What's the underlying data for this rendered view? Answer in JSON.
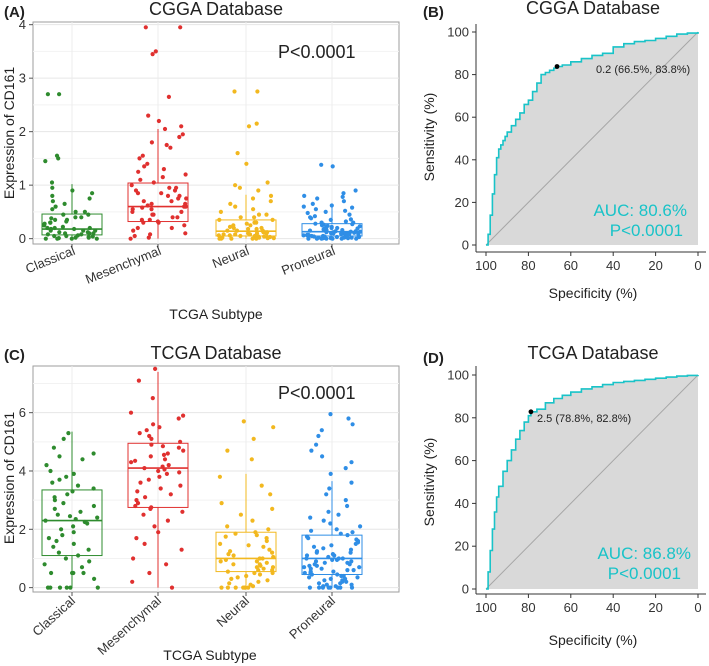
{
  "panels": [
    {
      "id": "A",
      "label": "(A)",
      "chart_data": {
        "type": "box",
        "title": "CGGA Database",
        "xlabel": "TCGA Subtype",
        "ylabel": "Expression of CD161",
        "annotation": "P<0.0001",
        "ylim": [
          -0.1,
          4.05
        ],
        "yticks": [
          0,
          1,
          2,
          3,
          4
        ],
        "categories": [
          "Classical",
          "Mesenchymal",
          "Neural",
          "Proneural"
        ],
        "colors": [
          "#2e8b2e",
          "#e0302f",
          "#f2b81f",
          "#2f8ee6"
        ],
        "boxes": [
          {
            "q1": 0.07,
            "median": 0.18,
            "q3": 0.46,
            "whisker_low": 0.0,
            "whisker_high": 1.02
          },
          {
            "q1": 0.32,
            "median": 0.6,
            "q3": 1.04,
            "whisker_low": 0.0,
            "whisker_high": 2.05
          },
          {
            "q1": 0.05,
            "median": 0.14,
            "q3": 0.35,
            "whisker_low": 0.0,
            "whisker_high": 0.82
          },
          {
            "q1": 0.05,
            "median": 0.13,
            "q3": 0.28,
            "whisker_low": 0.0,
            "whisker_high": 0.62
          }
        ],
        "points": [
          [
            2.7,
            2.7,
            1.55,
            1.5,
            1.45,
            1.05,
            0.95,
            0.9,
            0.85,
            0.8,
            0.75,
            0.7,
            0.65,
            0.6,
            0.55,
            0.5,
            0.5,
            0.45,
            0.45,
            0.4,
            0.4,
            0.38,
            0.35,
            0.35,
            0.32,
            0.3,
            0.3,
            0.28,
            0.25,
            0.25,
            0.22,
            0.2,
            0.2,
            0.2,
            0.18,
            0.18,
            0.15,
            0.15,
            0.15,
            0.12,
            0.12,
            0.1,
            0.1,
            0.1,
            0.08,
            0.08,
            0.06,
            0.05,
            0.05,
            0.04,
            0.03,
            0.02,
            0.02,
            0.01,
            0.0,
            0.0,
            0.0,
            0.0
          ],
          [
            3.95,
            3.95,
            3.5,
            3.45,
            2.65,
            2.3,
            2.2,
            2.1,
            2.05,
            1.95,
            1.9,
            1.8,
            1.75,
            1.7,
            1.55,
            1.5,
            1.4,
            1.35,
            1.3,
            1.25,
            1.2,
            1.15,
            1.1,
            1.05,
            1.0,
            0.95,
            0.95,
            0.9,
            0.9,
            0.85,
            0.85,
            0.8,
            0.8,
            0.75,
            0.75,
            0.7,
            0.7,
            0.65,
            0.65,
            0.62,
            0.6,
            0.6,
            0.58,
            0.55,
            0.55,
            0.5,
            0.5,
            0.45,
            0.45,
            0.4,
            0.4,
            0.35,
            0.35,
            0.32,
            0.3,
            0.3,
            0.25,
            0.2,
            0.2,
            0.15,
            0.1,
            0.08,
            0.05,
            0.02,
            0.0
          ],
          [
            2.75,
            2.75,
            2.15,
            2.1,
            1.6,
            1.4,
            1.05,
            1.0,
            0.95,
            0.9,
            0.8,
            0.75,
            0.7,
            0.65,
            0.6,
            0.55,
            0.5,
            0.45,
            0.45,
            0.4,
            0.4,
            0.35,
            0.35,
            0.3,
            0.3,
            0.28,
            0.25,
            0.25,
            0.22,
            0.2,
            0.2,
            0.18,
            0.18,
            0.15,
            0.15,
            0.15,
            0.12,
            0.12,
            0.12,
            0.1,
            0.1,
            0.1,
            0.08,
            0.08,
            0.08,
            0.06,
            0.06,
            0.05,
            0.05,
            0.04,
            0.04,
            0.03,
            0.03,
            0.02,
            0.02,
            0.01,
            0.01,
            0.0,
            0.0,
            0.0,
            0.0,
            0.0
          ],
          [
            1.38,
            1.35,
            0.9,
            0.85,
            0.8,
            0.78,
            0.75,
            0.7,
            0.65,
            0.62,
            0.6,
            0.58,
            0.55,
            0.52,
            0.5,
            0.48,
            0.45,
            0.42,
            0.4,
            0.38,
            0.36,
            0.35,
            0.32,
            0.3,
            0.3,
            0.28,
            0.27,
            0.26,
            0.25,
            0.24,
            0.23,
            0.22,
            0.21,
            0.2,
            0.2,
            0.19,
            0.18,
            0.17,
            0.16,
            0.16,
            0.15,
            0.15,
            0.14,
            0.14,
            0.13,
            0.13,
            0.12,
            0.12,
            0.11,
            0.11,
            0.1,
            0.1,
            0.1,
            0.09,
            0.09,
            0.08,
            0.08,
            0.08,
            0.07,
            0.07,
            0.06,
            0.06,
            0.06,
            0.05,
            0.05,
            0.05,
            0.04,
            0.04,
            0.04,
            0.03,
            0.03,
            0.03,
            0.02,
            0.02,
            0.02,
            0.01,
            0.01,
            0.01,
            0.0,
            0.0,
            0.0,
            0.0,
            0.0,
            0.0,
            0.0
          ]
        ]
      }
    },
    {
      "id": "B",
      "label": "(B)",
      "chart_data": {
        "type": "roc",
        "title": "CGGA Database",
        "xlabel": "Specificity (%)",
        "ylabel": "Sensitivity (%)",
        "xlim": [
          100,
          0
        ],
        "ylim": [
          0,
          100
        ],
        "xticks": [
          100,
          80,
          60,
          40,
          20,
          0
        ],
        "yticks": [
          0,
          20,
          40,
          60,
          80,
          100
        ],
        "curve_color": "#19c3c8",
        "fill_color": "#d9d9d9",
        "auc_text": "AUC: 80.6%",
        "p_text": "P<0.0001",
        "cutoff_label": "0.2 (66.5%, 83.8%)",
        "cutoff": {
          "specificity": 66.5,
          "sensitivity": 83.8
        },
        "specificity": [
          100,
          99,
          98,
          97,
          96,
          95,
          94,
          93,
          92,
          91,
          90,
          88,
          86,
          84,
          82,
          80,
          78,
          76,
          74,
          72,
          70,
          68,
          66.5,
          64,
          60,
          55,
          50,
          45,
          40,
          35,
          30,
          25,
          20,
          15,
          10,
          5,
          0
        ],
        "sensitivity": [
          0,
          5,
          14,
          24,
          33,
          41,
          45,
          47,
          49,
          51,
          53,
          56,
          59,
          62,
          66,
          68,
          72,
          76,
          80,
          81,
          82,
          83,
          83.8,
          84.5,
          86,
          87.5,
          89,
          90,
          93,
          94.5,
          95.5,
          96,
          97,
          98,
          99,
          99.5,
          100
        ]
      }
    },
    {
      "id": "C",
      "label": "(C)",
      "chart_data": {
        "type": "box",
        "title": "TCGA Database",
        "xlabel": "TCGA Subtype",
        "ylabel": "Expression of CD161",
        "annotation": "P<0.0001",
        "ylim": [
          -0.15,
          7.6
        ],
        "yticks": [
          0,
          2,
          4,
          6
        ],
        "categories": [
          "Classical",
          "Mesenchymal",
          "Neural",
          "Proneural"
        ],
        "colors": [
          "#2e8b2e",
          "#e0302f",
          "#f2b81f",
          "#2f8ee6"
        ],
        "boxes": [
          {
            "q1": 1.1,
            "median": 2.3,
            "q3": 3.35,
            "whisker_low": 0.0,
            "whisker_high": 5.35
          },
          {
            "q1": 2.75,
            "median": 4.1,
            "q3": 4.95,
            "whisker_low": 0.0,
            "whisker_high": 7.4
          },
          {
            "q1": 0.55,
            "median": 1.0,
            "q3": 1.9,
            "whisker_low": 0.0,
            "whisker_high": 3.9
          },
          {
            "q1": 0.45,
            "median": 1.0,
            "q3": 1.8,
            "whisker_low": 0.0,
            "whisker_high": 3.65
          }
        ],
        "points": [
          [
            5.3,
            5.1,
            4.8,
            4.6,
            4.5,
            4.4,
            4.2,
            4.0,
            3.9,
            3.8,
            3.7,
            3.6,
            3.5,
            3.4,
            3.3,
            3.2,
            3.1,
            3.0,
            2.9,
            2.8,
            2.7,
            2.6,
            2.5,
            2.45,
            2.4,
            2.35,
            2.3,
            2.25,
            2.2,
            2.1,
            2.0,
            1.9,
            1.8,
            1.7,
            1.6,
            1.5,
            1.4,
            1.3,
            1.2,
            1.1,
            1.0,
            0.9,
            0.8,
            0.7,
            0.5,
            0.5,
            0.5,
            0.5,
            0.3,
            0.0,
            0.0,
            0.0,
            0.0,
            0.0,
            0.0
          ],
          [
            7.5,
            7.1,
            6.5,
            6.0,
            5.9,
            5.8,
            5.6,
            5.5,
            5.4,
            5.3,
            5.2,
            5.1,
            5.0,
            4.9,
            4.85,
            4.8,
            4.7,
            4.6,
            4.55,
            4.5,
            4.4,
            4.35,
            4.3,
            4.2,
            4.15,
            4.1,
            4.05,
            4.0,
            3.95,
            3.9,
            3.8,
            3.7,
            3.6,
            3.5,
            3.4,
            3.3,
            3.2,
            3.1,
            3.0,
            2.9,
            2.8,
            2.75,
            2.7,
            2.6,
            2.5,
            2.3,
            2.1,
            1.9,
            1.7,
            1.5,
            1.3,
            1.0,
            0.8,
            0.5,
            0.2,
            0.0
          ],
          [
            5.7,
            5.5,
            5.1,
            4.7,
            4.4,
            3.8,
            3.5,
            3.2,
            2.9,
            2.7,
            2.5,
            2.3,
            2.1,
            2.0,
            1.9,
            1.85,
            1.8,
            1.75,
            1.7,
            1.6,
            1.5,
            1.45,
            1.4,
            1.3,
            1.25,
            1.2,
            1.15,
            1.1,
            1.05,
            1.0,
            1.0,
            0.95,
            0.9,
            0.9,
            0.85,
            0.8,
            0.8,
            0.75,
            0.7,
            0.7,
            0.65,
            0.6,
            0.6,
            0.55,
            0.5,
            0.5,
            0.45,
            0.4,
            0.35,
            0.3,
            0.25,
            0.2,
            0.15,
            0.1,
            0.05,
            0.0,
            0.0,
            0.0,
            0.0,
            0.0,
            0.0,
            0.0
          ],
          [
            5.95,
            5.8,
            5.6,
            5.4,
            5.2,
            4.9,
            4.7,
            4.5,
            4.3,
            4.1,
            3.9,
            3.6,
            3.4,
            3.2,
            3.0,
            2.8,
            2.6,
            2.5,
            2.4,
            2.3,
            2.2,
            2.1,
            2.0,
            1.95,
            1.9,
            1.85,
            1.8,
            1.75,
            1.7,
            1.65,
            1.6,
            1.55,
            1.5,
            1.45,
            1.4,
            1.35,
            1.3,
            1.25,
            1.2,
            1.2,
            1.15,
            1.1,
            1.1,
            1.05,
            1.0,
            1.0,
            1.0,
            0.95,
            0.95,
            0.9,
            0.9,
            0.85,
            0.85,
            0.8,
            0.8,
            0.75,
            0.75,
            0.7,
            0.7,
            0.65,
            0.65,
            0.6,
            0.6,
            0.55,
            0.55,
            0.5,
            0.5,
            0.45,
            0.45,
            0.4,
            0.4,
            0.35,
            0.35,
            0.3,
            0.3,
            0.25,
            0.25,
            0.2,
            0.2,
            0.15,
            0.15,
            0.1,
            0.1,
            0.05,
            0.05,
            0.0,
            0.0,
            0.0,
            0.0,
            0.0,
            0.0,
            0.0,
            0.0
          ]
        ]
      }
    },
    {
      "id": "D",
      "label": "(D)",
      "chart_data": {
        "type": "roc",
        "title": "TCGA Database",
        "xlabel": "Specificity (%)",
        "ylabel": "Sensitivity (%)",
        "xlim": [
          100,
          0
        ],
        "ylim": [
          0,
          100
        ],
        "xticks": [
          100,
          80,
          60,
          40,
          20,
          0
        ],
        "yticks": [
          0,
          20,
          40,
          60,
          80,
          100
        ],
        "curve_color": "#19c3c8",
        "fill_color": "#d9d9d9",
        "auc_text": "AUC: 86.8%",
        "p_text": "P<0.0001",
        "cutoff_label": "2.5 (78.8%, 82.8%)",
        "cutoff": {
          "specificity": 78.8,
          "sensitivity": 82.8
        },
        "specificity": [
          100,
          99,
          98,
          97,
          96,
          95,
          94,
          92,
          90,
          88,
          86,
          84,
          82,
          80,
          78.8,
          76,
          72,
          68,
          64,
          60,
          55,
          50,
          45,
          40,
          35,
          30,
          25,
          20,
          15,
          10,
          5,
          0
        ],
        "sensitivity": [
          0,
          8,
          18,
          28,
          36,
          43,
          48,
          55,
          60,
          65,
          70,
          74,
          78,
          81,
          82.8,
          84,
          87,
          89,
          90.5,
          92,
          93.5,
          94.5,
          95.5,
          96.5,
          97,
          97.5,
          98,
          98.5,
          99,
          99.5,
          99.8,
          100
        ]
      }
    }
  ]
}
